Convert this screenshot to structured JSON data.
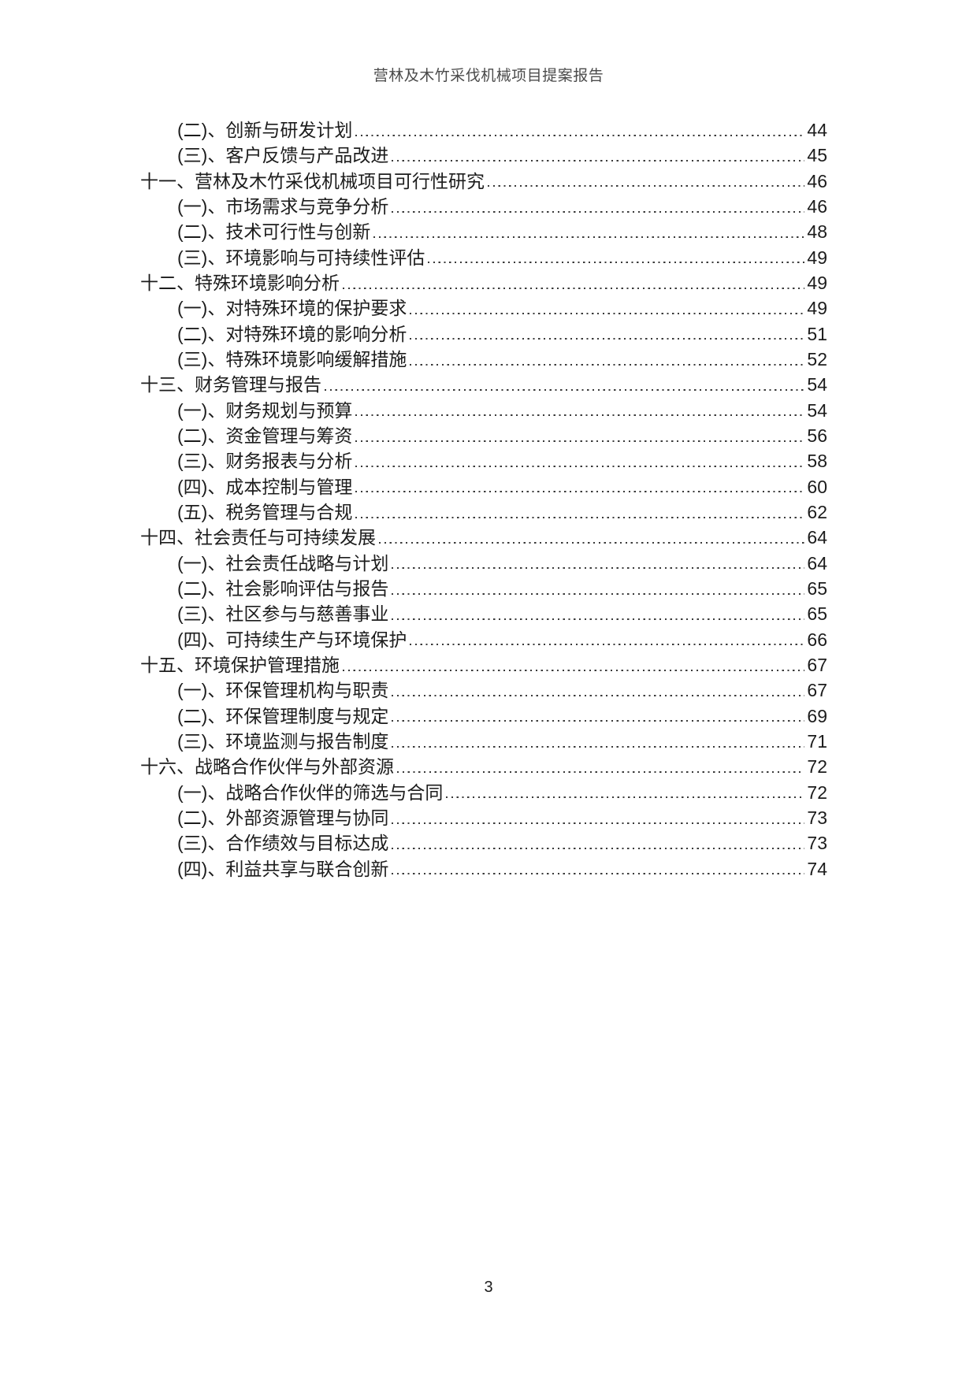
{
  "document": {
    "header_title": "营林及木竹采伐机械项目提案报告",
    "page_number": "3"
  },
  "toc": {
    "entries": [
      {
        "label": "(二)、创新与研发计划",
        "page": "44",
        "level": 2
      },
      {
        "label": "(三)、客户反馈与产品改进",
        "page": "45",
        "level": 2
      },
      {
        "label": "十一、营林及木竹采伐机械项目可行性研究",
        "page": "46",
        "level": 1
      },
      {
        "label": "(一)、市场需求与竞争分析",
        "page": "46",
        "level": 2
      },
      {
        "label": "(二)、技术可行性与创新",
        "page": "48",
        "level": 2
      },
      {
        "label": "(三)、环境影响与可持续性评估",
        "page": "49",
        "level": 2
      },
      {
        "label": "十二、特殊环境影响分析",
        "page": "49",
        "level": 1
      },
      {
        "label": "(一)、对特殊环境的保护要求",
        "page": "49",
        "level": 2
      },
      {
        "label": "(二)、对特殊环境的影响分析",
        "page": "51",
        "level": 2
      },
      {
        "label": "(三)、特殊环境影响缓解措施",
        "page": "52",
        "level": 2
      },
      {
        "label": "十三、财务管理与报告",
        "page": "54",
        "level": 1
      },
      {
        "label": "(一)、财务规划与预算",
        "page": "54",
        "level": 2
      },
      {
        "label": "(二)、资金管理与筹资",
        "page": "56",
        "level": 2
      },
      {
        "label": "(三)、财务报表与分析",
        "page": "58",
        "level": 2
      },
      {
        "label": "(四)、成本控制与管理",
        "page": "60",
        "level": 2
      },
      {
        "label": "(五)、税务管理与合规",
        "page": "62",
        "level": 2
      },
      {
        "label": "十四、社会责任与可持续发展",
        "page": "64",
        "level": 1
      },
      {
        "label": "(一)、社会责任战略与计划",
        "page": "64",
        "level": 2
      },
      {
        "label": "(二)、社会影响评估与报告",
        "page": "65",
        "level": 2
      },
      {
        "label": "(三)、社区参与与慈善事业",
        "page": "65",
        "level": 2
      },
      {
        "label": "(四)、可持续生产与环境保护",
        "page": "66",
        "level": 2
      },
      {
        "label": "十五、环境保护管理措施",
        "page": "67",
        "level": 1
      },
      {
        "label": "(一)、环保管理机构与职责",
        "page": "67",
        "level": 2
      },
      {
        "label": "(二)、环保管理制度与规定",
        "page": "69",
        "level": 2
      },
      {
        "label": "(三)、环境监测与报告制度",
        "page": "71",
        "level": 2
      },
      {
        "label": "十六、战略合作伙伴与外部资源",
        "page": "72",
        "level": 1
      },
      {
        "label": "(一)、战略合作伙伴的筛选与合同",
        "page": "72",
        "level": 2
      },
      {
        "label": "(二)、外部资源管理与协同",
        "page": "73",
        "level": 2
      },
      {
        "label": "(三)、合作绩效与目标达成",
        "page": "73",
        "level": 2
      },
      {
        "label": "(四)、利益共享与联合创新",
        "page": "74",
        "level": 2
      }
    ]
  },
  "colors": {
    "background": "#ffffff",
    "text": "#1c1c1c",
    "header_text": "#4a4a4a",
    "leader_dots": "#3a3a3a"
  }
}
